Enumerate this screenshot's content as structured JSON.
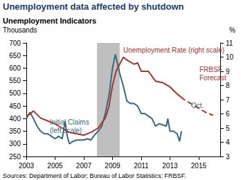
{
  "chart_data": {
    "type": "line",
    "title": "Unemployment data affected by shutdown",
    "subtitle": "Unemployment Indicators",
    "y_label": "Thousands",
    "y2_label": "%",
    "source": "Sources: Department of Labor; Bureau of Labor Statistics; FRBSF.",
    "xlim": [
      2003,
      2016.5
    ],
    "xticks": [
      2003,
      2005,
      2007,
      2009,
      2011,
      2013,
      2015
    ],
    "ylim": [
      250,
      700
    ],
    "yticks": [
      250,
      300,
      350,
      400,
      450,
      500,
      550,
      600,
      650,
      700
    ],
    "y2lim": [
      3,
      11
    ],
    "y2ticks": [
      3,
      4,
      5,
      6,
      7,
      8,
      9,
      10,
      11
    ],
    "grid": false,
    "recession": [
      2007.92,
      2009.5
    ],
    "recession_color": "#bfbfbf",
    "annotations": [
      {
        "lines": [
          "Initial Claims",
          "(left scale)"
        ],
        "color": "#35687a"
      },
      {
        "lines": [
          "Unemployment Rate (right scale)"
        ],
        "color": "#a8322d"
      },
      {
        "lines": [
          "FRBSF",
          "Forecast"
        ],
        "color": "#a8322d"
      },
      {
        "lines": [
          "Oct."
        ],
        "color": "#35687a"
      }
    ],
    "series": [
      {
        "name": "Initial Claims",
        "axis": "y",
        "color": "#35687a",
        "line_style": "solid",
        "x": [
          2003.0,
          2003.25,
          2003.5,
          2003.75,
          2004.0,
          2004.25,
          2004.5,
          2004.75,
          2005.0,
          2005.25,
          2005.5,
          2005.7,
          2005.85,
          2006.0,
          2006.25,
          2006.5,
          2006.75,
          2007.0,
          2007.25,
          2007.5,
          2007.75,
          2008.0,
          2008.25,
          2008.5,
          2008.75,
          2009.0,
          2009.2,
          2009.5,
          2009.75,
          2010.0,
          2010.25,
          2010.5,
          2010.75,
          2011.0,
          2011.25,
          2011.5,
          2011.75,
          2012.0,
          2012.25,
          2012.5,
          2012.75,
          2012.85,
          2013.0,
          2013.25,
          2013.5,
          2013.67,
          2013.8
        ],
        "values": [
          400,
          425,
          400,
          370,
          350,
          340,
          340,
          330,
          320,
          330,
          320,
          390,
          330,
          300,
          310,
          315,
          315,
          315,
          320,
          315,
          335,
          350,
          370,
          420,
          490,
          600,
          655,
          580,
          530,
          470,
          460,
          460,
          450,
          420,
          420,
          410,
          400,
          370,
          380,
          375,
          370,
          400,
          350,
          350,
          340,
          310,
          350
        ]
      },
      {
        "name": "Unemployment Rate",
        "axis": "y2",
        "color": "#a8322d",
        "line_style": "solid",
        "x": [
          2003.0,
          2003.5,
          2004.0,
          2004.5,
          2005.0,
          2005.5,
          2006.0,
          2006.5,
          2007.0,
          2007.5,
          2008.0,
          2008.5,
          2008.75,
          2009.0,
          2009.25,
          2009.5,
          2009.75,
          2010.0,
          2010.5,
          2010.75,
          2011.0,
          2011.5,
          2012.0,
          2012.5,
          2013.0,
          2013.5,
          2013.75
        ],
        "values": [
          5.8,
          6.2,
          5.7,
          5.5,
          5.3,
          5.0,
          4.7,
          4.6,
          4.5,
          4.7,
          5.0,
          5.7,
          6.5,
          8.0,
          9.0,
          9.5,
          10.0,
          9.8,
          9.5,
          9.6,
          9.0,
          9.0,
          8.3,
          8.2,
          7.9,
          7.4,
          7.2
        ]
      },
      {
        "name": "FRBSF Forecast",
        "axis": "y2",
        "color": "#a8322d",
        "line_style": "dashed",
        "x": [
          2013.75,
          2014.0,
          2014.5,
          2015.0,
          2015.5,
          2016.0
        ],
        "values": [
          7.2,
          7.0,
          6.7,
          6.4,
          6.1,
          5.9
        ]
      }
    ]
  }
}
